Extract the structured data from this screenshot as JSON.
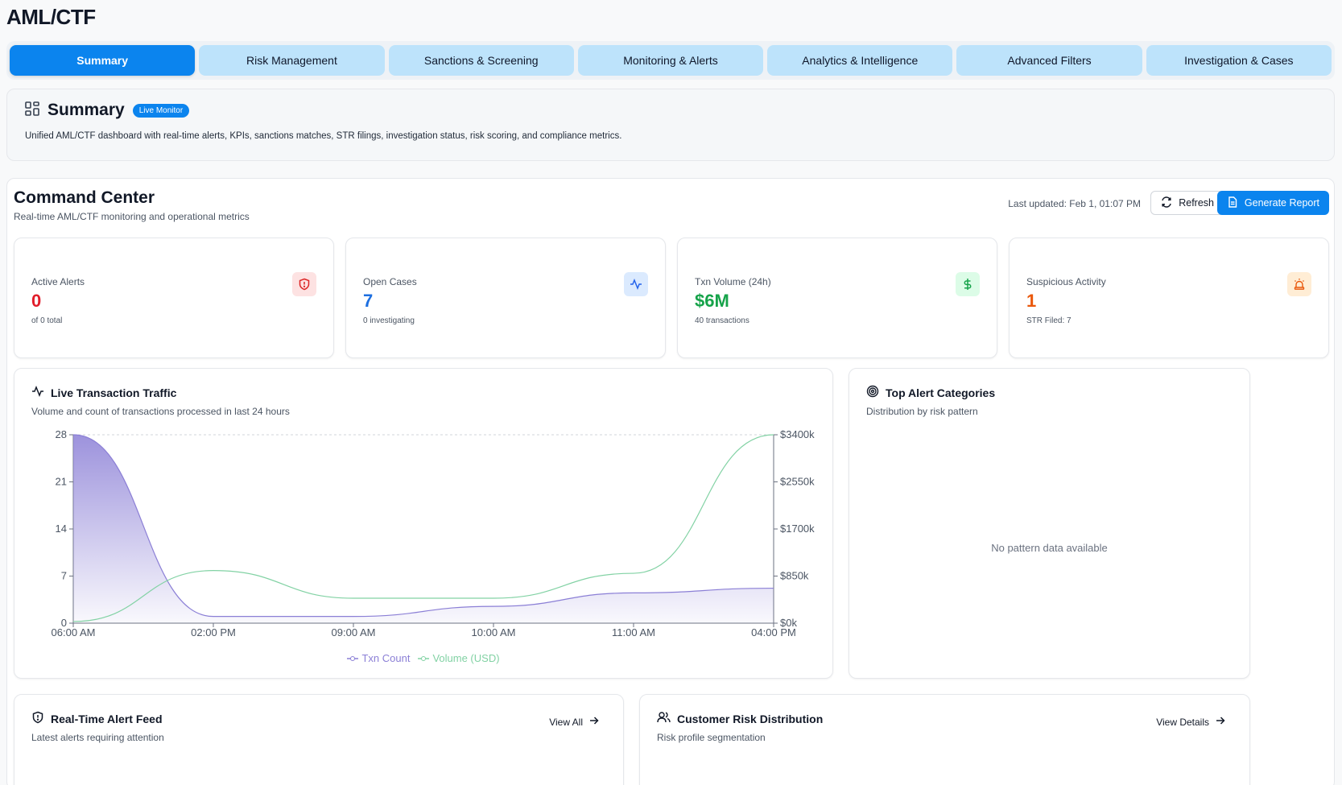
{
  "app": {
    "title": "AML/CTF"
  },
  "tabs": [
    {
      "label": "Summary",
      "active": true
    },
    {
      "label": "Risk Management"
    },
    {
      "label": "Sanctions & Screening"
    },
    {
      "label": "Monitoring & Alerts"
    },
    {
      "label": "Analytics & Intelligence"
    },
    {
      "label": "Advanced Filters"
    },
    {
      "label": "Investigation & Cases"
    }
  ],
  "summary": {
    "title": "Summary",
    "badge": "Live Monitor",
    "description": "Unified AML/CTF dashboard with real-time alerts, KPIs, sanctions matches, STR filings, investigation status, risk scoring, and compliance metrics."
  },
  "command_center": {
    "title": "Command Center",
    "subtitle": "Real-time AML/CTF monitoring and operational metrics",
    "last_updated": "Last updated: Feb 1, 01:07 PM",
    "refresh_label": "Refresh",
    "report_label": "Generate Report"
  },
  "kpis": [
    {
      "label": "Active Alerts",
      "value": "0",
      "sub": "of 0 total",
      "color": "#e11d2a",
      "icon": "shield-alert-icon",
      "icon_bg": "#fde2e2"
    },
    {
      "label": "Open Cases",
      "value": "7",
      "sub": "0 investigating",
      "color": "#1d6fe0",
      "icon": "activity-icon",
      "icon_bg": "#dbeafe"
    },
    {
      "label": "Txn Volume (24h)",
      "value": "$6M",
      "sub": "40 transactions",
      "color": "#16a34a",
      "icon": "dollar-icon",
      "icon_bg": "#dcfce7"
    },
    {
      "label": "Suspicious Activity",
      "value": "1",
      "sub": "STR Filed: 7",
      "color": "#ea580c",
      "icon": "siren-icon",
      "icon_bg": "#ffedd5"
    }
  ],
  "traffic": {
    "title": "Live Transaction Traffic",
    "subtitle": "Volume and count of transactions processed in last 24 hours"
  },
  "categories": {
    "title": "Top Alert Categories",
    "subtitle": "Distribution by risk pattern",
    "empty_text": "No pattern data available"
  },
  "feed": {
    "title": "Real-Time Alert Feed",
    "subtitle": "Latest alerts requiring attention",
    "link": "View All"
  },
  "risk": {
    "title": "Customer Risk Distribution",
    "subtitle": "Risk profile segmentation",
    "link": "View Details"
  },
  "colors": {
    "accent": "#0b84ee",
    "count_series": "#8b7fd6",
    "volume_series": "#82d2a4"
  },
  "chart_data": {
    "type": "area",
    "categories": [
      "06:00 AM",
      "02:00 PM",
      "09:00 AM",
      "10:00 AM",
      "11:00 AM",
      "04:00 PM"
    ],
    "series": [
      {
        "name": "Txn Count",
        "axis": "left",
        "values": [
          28,
          1,
          1,
          2.5,
          4.5,
          5.2
        ]
      },
      {
        "name": "Volume (USD)",
        "axis": "right",
        "values": [
          30,
          950,
          450,
          450,
          900,
          3400
        ]
      }
    ],
    "y_left": {
      "ticks": [
        "0",
        "7",
        "14",
        "21",
        "28"
      ],
      "ylim": [
        0,
        28
      ]
    },
    "y_right": {
      "ticks": [
        "$0k",
        "$850k",
        "$1700k",
        "$2550k",
        "$3400k"
      ],
      "ylim": [
        0,
        3400
      ]
    },
    "legend": "bottom-center"
  }
}
